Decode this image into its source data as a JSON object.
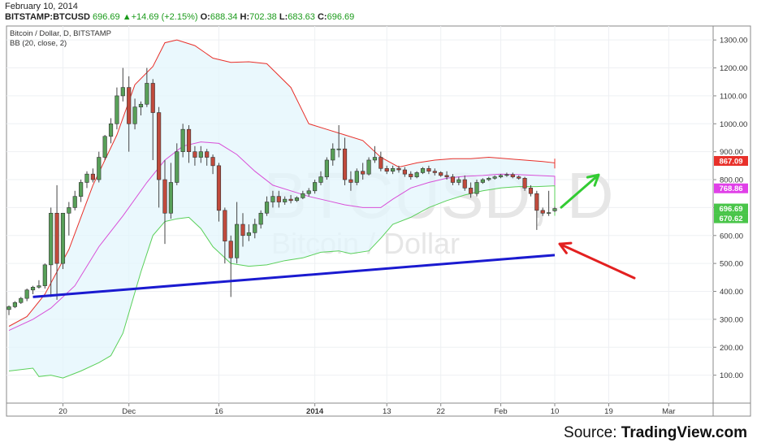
{
  "header": {
    "date": "February 10, 2014",
    "symbol": "BITSTAMP:BTCUSD",
    "last": "696.69",
    "change": "+14.69 (+2.15%)",
    "open_label": "O:",
    "open": "688.34",
    "high_label": "H:",
    "high": "702.38",
    "low_label": "L:",
    "low": "683.63",
    "close_label": "C:",
    "close": "696.69"
  },
  "legend": {
    "series": "Bitcoin / Dollar, D, BITSTAMP",
    "indicator": "BB (20, close, 2)"
  },
  "watermark": {
    "big": "BTCUSD, D",
    "small": "Bitcoin / Dollar"
  },
  "source": {
    "prefix": "Source: ",
    "name": "TradingView.com"
  },
  "price_badges": [
    {
      "label": "867.09",
      "value": 867.09,
      "color": "#e8302a"
    },
    {
      "label": "768.86",
      "value": 768.86,
      "color": "#e040e8"
    },
    {
      "label": "696.69",
      "value": 696.69,
      "color": "#49c549"
    },
    {
      "label": "670.62",
      "value": 670.62,
      "color": "#49c549"
    }
  ],
  "chart_data": {
    "type": "candlestick",
    "title": "Bitcoin / Dollar, D, BITSTAMP",
    "y_axis": {
      "ticks": [
        100,
        200,
        300,
        400,
        500,
        600,
        700,
        800,
        900,
        1000,
        1100,
        1200,
        1300
      ],
      "ylim": [
        0,
        1350
      ],
      "position": "right"
    },
    "x_axis": {
      "ticks": [
        {
          "label": "20",
          "date": "2013-11-20"
        },
        {
          "label": "Dec",
          "date": "2013-12-01"
        },
        {
          "label": "16",
          "date": "2013-12-16"
        },
        {
          "label": "2014",
          "date": "2014-01-01"
        },
        {
          "label": "13",
          "date": "2014-01-13"
        },
        {
          "label": "22",
          "date": "2014-01-22"
        },
        {
          "label": "Feb",
          "date": "2014-02-01"
        },
        {
          "label": "10",
          "date": "2014-02-10"
        },
        {
          "label": "19",
          "date": "2014-02-19"
        },
        {
          "label": "Mar",
          "date": "2014-03-01"
        }
      ],
      "range": [
        "2013-11-11",
        "2014-03-08"
      ]
    },
    "candles": [
      {
        "date": "2013-11-11",
        "o": 335,
        "h": 350,
        "l": 315,
        "c": 345
      },
      {
        "date": "2013-11-12",
        "o": 345,
        "h": 365,
        "l": 340,
        "c": 360
      },
      {
        "date": "2013-11-13",
        "o": 360,
        "h": 380,
        "l": 355,
        "c": 375
      },
      {
        "date": "2013-11-14",
        "o": 375,
        "h": 410,
        "l": 365,
        "c": 405
      },
      {
        "date": "2013-11-15",
        "o": 405,
        "h": 420,
        "l": 390,
        "c": 415
      },
      {
        "date": "2013-11-16",
        "o": 415,
        "h": 440,
        "l": 410,
        "c": 420
      },
      {
        "date": "2013-11-17",
        "o": 420,
        "h": 500,
        "l": 410,
        "c": 495
      },
      {
        "date": "2013-11-18",
        "o": 495,
        "h": 700,
        "l": 380,
        "c": 680
      },
      {
        "date": "2013-11-19",
        "o": 680,
        "h": 780,
        "l": 370,
        "c": 500
      },
      {
        "date": "2013-11-20",
        "o": 500,
        "h": 680,
        "l": 480,
        "c": 680
      },
      {
        "date": "2013-11-21",
        "o": 680,
        "h": 720,
        "l": 600,
        "c": 700
      },
      {
        "date": "2013-11-22",
        "o": 700,
        "h": 760,
        "l": 690,
        "c": 740
      },
      {
        "date": "2013-11-23",
        "o": 740,
        "h": 800,
        "l": 720,
        "c": 790
      },
      {
        "date": "2013-11-24",
        "o": 790,
        "h": 830,
        "l": 770,
        "c": 820
      },
      {
        "date": "2013-11-25",
        "o": 820,
        "h": 840,
        "l": 790,
        "c": 800
      },
      {
        "date": "2013-11-26",
        "o": 800,
        "h": 900,
        "l": 790,
        "c": 880
      },
      {
        "date": "2013-11-27",
        "o": 880,
        "h": 960,
        "l": 870,
        "c": 955
      },
      {
        "date": "2013-11-28",
        "o": 955,
        "h": 1020,
        "l": 930,
        "c": 1000
      },
      {
        "date": "2013-11-29",
        "o": 1000,
        "h": 1130,
        "l": 980,
        "c": 1100
      },
      {
        "date": "2013-11-30",
        "o": 1100,
        "h": 1200,
        "l": 1080,
        "c": 1130
      },
      {
        "date": "2013-12-01",
        "o": 1130,
        "h": 1170,
        "l": 900,
        "c": 1000
      },
      {
        "date": "2013-12-02",
        "o": 1000,
        "h": 1090,
        "l": 980,
        "c": 1060
      },
      {
        "date": "2013-12-03",
        "o": 1060,
        "h": 1080,
        "l": 1030,
        "c": 1070
      },
      {
        "date": "2013-12-04",
        "o": 1070,
        "h": 1200,
        "l": 1060,
        "c": 1145
      },
      {
        "date": "2013-12-05",
        "o": 1145,
        "h": 1160,
        "l": 870,
        "c": 1040
      },
      {
        "date": "2013-12-06",
        "o": 1040,
        "h": 1060,
        "l": 700,
        "c": 800
      },
      {
        "date": "2013-12-07",
        "o": 800,
        "h": 870,
        "l": 570,
        "c": 680
      },
      {
        "date": "2013-12-08",
        "o": 680,
        "h": 860,
        "l": 660,
        "c": 790
      },
      {
        "date": "2013-12-09",
        "o": 790,
        "h": 930,
        "l": 780,
        "c": 900
      },
      {
        "date": "2013-12-10",
        "o": 900,
        "h": 1000,
        "l": 880,
        "c": 980
      },
      {
        "date": "2013-12-11",
        "o": 980,
        "h": 995,
        "l": 860,
        "c": 900
      },
      {
        "date": "2013-12-12",
        "o": 900,
        "h": 920,
        "l": 850,
        "c": 880
      },
      {
        "date": "2013-12-13",
        "o": 880,
        "h": 920,
        "l": 860,
        "c": 900
      },
      {
        "date": "2013-12-14",
        "o": 900,
        "h": 910,
        "l": 850,
        "c": 880
      },
      {
        "date": "2013-12-15",
        "o": 880,
        "h": 890,
        "l": 820,
        "c": 850
      },
      {
        "date": "2013-12-16",
        "o": 850,
        "h": 860,
        "l": 650,
        "c": 690
      },
      {
        "date": "2013-12-17",
        "o": 690,
        "h": 700,
        "l": 500,
        "c": 580
      },
      {
        "date": "2013-12-18",
        "o": 580,
        "h": 600,
        "l": 380,
        "c": 520
      },
      {
        "date": "2013-12-19",
        "o": 520,
        "h": 720,
        "l": 500,
        "c": 640
      },
      {
        "date": "2013-12-20",
        "o": 640,
        "h": 680,
        "l": 560,
        "c": 600
      },
      {
        "date": "2013-12-21",
        "o": 600,
        "h": 640,
        "l": 580,
        "c": 610
      },
      {
        "date": "2013-12-22",
        "o": 610,
        "h": 660,
        "l": 590,
        "c": 640
      },
      {
        "date": "2013-12-23",
        "o": 640,
        "h": 690,
        "l": 625,
        "c": 680
      },
      {
        "date": "2013-12-24",
        "o": 680,
        "h": 740,
        "l": 670,
        "c": 720
      },
      {
        "date": "2013-12-25",
        "o": 720,
        "h": 760,
        "l": 700,
        "c": 740
      },
      {
        "date": "2013-12-26",
        "o": 740,
        "h": 760,
        "l": 700,
        "c": 720
      },
      {
        "date": "2013-12-27",
        "o": 720,
        "h": 740,
        "l": 710,
        "c": 730
      },
      {
        "date": "2013-12-28",
        "o": 730,
        "h": 745,
        "l": 715,
        "c": 725
      },
      {
        "date": "2013-12-29",
        "o": 725,
        "h": 740,
        "l": 720,
        "c": 735
      },
      {
        "date": "2013-12-30",
        "o": 735,
        "h": 760,
        "l": 730,
        "c": 750
      },
      {
        "date": "2013-12-31",
        "o": 750,
        "h": 770,
        "l": 740,
        "c": 760
      },
      {
        "date": "2014-01-01",
        "o": 760,
        "h": 800,
        "l": 750,
        "c": 790
      },
      {
        "date": "2014-01-02",
        "o": 790,
        "h": 830,
        "l": 780,
        "c": 810
      },
      {
        "date": "2014-01-03",
        "o": 810,
        "h": 880,
        "l": 800,
        "c": 870
      },
      {
        "date": "2014-01-04",
        "o": 870,
        "h": 930,
        "l": 850,
        "c": 910
      },
      {
        "date": "2014-01-05",
        "o": 910,
        "h": 995,
        "l": 880,
        "c": 910
      },
      {
        "date": "2014-01-06",
        "o": 910,
        "h": 950,
        "l": 780,
        "c": 800
      },
      {
        "date": "2014-01-07",
        "o": 800,
        "h": 830,
        "l": 760,
        "c": 790
      },
      {
        "date": "2014-01-08",
        "o": 790,
        "h": 840,
        "l": 780,
        "c": 830
      },
      {
        "date": "2014-01-09",
        "o": 830,
        "h": 860,
        "l": 800,
        "c": 820
      },
      {
        "date": "2014-01-10",
        "o": 820,
        "h": 880,
        "l": 815,
        "c": 870
      },
      {
        "date": "2014-01-11",
        "o": 870,
        "h": 920,
        "l": 860,
        "c": 880
      },
      {
        "date": "2014-01-12",
        "o": 880,
        "h": 900,
        "l": 830,
        "c": 840
      },
      {
        "date": "2014-01-13",
        "o": 840,
        "h": 850,
        "l": 820,
        "c": 830
      },
      {
        "date": "2014-01-14",
        "o": 830,
        "h": 850,
        "l": 820,
        "c": 840
      },
      {
        "date": "2014-01-15",
        "o": 840,
        "h": 850,
        "l": 825,
        "c": 835
      },
      {
        "date": "2014-01-16",
        "o": 835,
        "h": 845,
        "l": 810,
        "c": 820
      },
      {
        "date": "2014-01-17",
        "o": 820,
        "h": 830,
        "l": 800,
        "c": 810
      },
      {
        "date": "2014-01-18",
        "o": 810,
        "h": 830,
        "l": 805,
        "c": 825
      },
      {
        "date": "2014-01-19",
        "o": 825,
        "h": 845,
        "l": 820,
        "c": 840
      },
      {
        "date": "2014-01-20",
        "o": 840,
        "h": 850,
        "l": 820,
        "c": 830
      },
      {
        "date": "2014-01-21",
        "o": 830,
        "h": 840,
        "l": 815,
        "c": 825
      },
      {
        "date": "2014-01-22",
        "o": 825,
        "h": 830,
        "l": 810,
        "c": 815
      },
      {
        "date": "2014-01-23",
        "o": 815,
        "h": 830,
        "l": 800,
        "c": 810
      },
      {
        "date": "2014-01-24",
        "o": 810,
        "h": 820,
        "l": 780,
        "c": 790
      },
      {
        "date": "2014-01-25",
        "o": 790,
        "h": 810,
        "l": 780,
        "c": 800
      },
      {
        "date": "2014-01-26",
        "o": 800,
        "h": 815,
        "l": 760,
        "c": 770
      },
      {
        "date": "2014-01-27",
        "o": 770,
        "h": 790,
        "l": 735,
        "c": 750
      },
      {
        "date": "2014-01-28",
        "o": 750,
        "h": 800,
        "l": 740,
        "c": 790
      },
      {
        "date": "2014-01-29",
        "o": 790,
        "h": 805,
        "l": 785,
        "c": 800
      },
      {
        "date": "2014-01-30",
        "o": 800,
        "h": 810,
        "l": 795,
        "c": 805
      },
      {
        "date": "2014-01-31",
        "o": 805,
        "h": 815,
        "l": 800,
        "c": 810
      },
      {
        "date": "2014-02-01",
        "o": 810,
        "h": 820,
        "l": 805,
        "c": 815
      },
      {
        "date": "2014-02-02",
        "o": 815,
        "h": 825,
        "l": 810,
        "c": 818
      },
      {
        "date": "2014-02-03",
        "o": 818,
        "h": 825,
        "l": 805,
        "c": 810
      },
      {
        "date": "2014-02-04",
        "o": 810,
        "h": 815,
        "l": 800,
        "c": 805
      },
      {
        "date": "2014-02-05",
        "o": 805,
        "h": 810,
        "l": 760,
        "c": 770
      },
      {
        "date": "2014-02-06",
        "o": 770,
        "h": 780,
        "l": 740,
        "c": 750
      },
      {
        "date": "2014-02-07",
        "o": 750,
        "h": 760,
        "l": 620,
        "c": 690
      },
      {
        "date": "2014-02-08",
        "o": 690,
        "h": 700,
        "l": 670,
        "c": 680
      },
      {
        "date": "2014-02-09",
        "o": 680,
        "h": 760,
        "l": 670,
        "c": 682
      },
      {
        "date": "2014-02-10",
        "o": 688.34,
        "h": 702.38,
        "l": 683.63,
        "c": 696.69
      }
    ],
    "bollinger": {
      "upper": [
        [
          0,
          275
        ],
        [
          3,
          310
        ],
        [
          6,
          390
        ],
        [
          10,
          550
        ],
        [
          14,
          780
        ],
        [
          18,
          960
        ],
        [
          21,
          1140
        ],
        [
          24,
          1205
        ],
        [
          26,
          1290
        ],
        [
          28,
          1300
        ],
        [
          31,
          1280
        ],
        [
          34,
          1235
        ],
        [
          37,
          1220
        ],
        [
          40,
          1222
        ],
        [
          43,
          1215
        ],
        [
          47,
          1130
        ],
        [
          50,
          1000
        ],
        [
          53,
          980
        ],
        [
          56,
          960
        ],
        [
          59,
          940
        ],
        [
          62,
          880
        ],
        [
          65,
          845
        ],
        [
          68,
          860
        ],
        [
          71,
          870
        ],
        [
          74,
          875
        ],
        [
          77,
          875
        ],
        [
          80,
          880
        ],
        [
          83,
          875
        ],
        [
          86,
          870
        ],
        [
          89,
          865
        ],
        [
          92,
          860
        ],
        [
          95,
          855
        ],
        [
          97,
          845
        ],
        [
          99,
          840
        ],
        [
          101,
          845
        ],
        [
          103,
          855
        ],
        [
          105,
          875
        ],
        [
          107,
          867
        ]
      ],
      "middle": [
        [
          0,
          260
        ],
        [
          4,
          300
        ],
        [
          7,
          340
        ],
        [
          11,
          420
        ],
        [
          15,
          560
        ],
        [
          19,
          670
        ],
        [
          23,
          790
        ],
        [
          26,
          870
        ],
        [
          29,
          920
        ],
        [
          32,
          935
        ],
        [
          35,
          930
        ],
        [
          38,
          890
        ],
        [
          41,
          830
        ],
        [
          44,
          780
        ],
        [
          47,
          760
        ],
        [
          50,
          740
        ],
        [
          53,
          725
        ],
        [
          56,
          710
        ],
        [
          59,
          700
        ],
        [
          62,
          700
        ],
        [
          64,
          730
        ],
        [
          67,
          770
        ],
        [
          70,
          790
        ],
        [
          73,
          805
        ],
        [
          76,
          812
        ],
        [
          79,
          815
        ],
        [
          82,
          820
        ],
        [
          85,
          818
        ],
        [
          88,
          815
        ],
        [
          91,
          812
        ],
        [
          94,
          808
        ],
        [
          97,
          800
        ],
        [
          100,
          790
        ],
        [
          103,
          780
        ],
        [
          107,
          768.86
        ]
      ],
      "lower": [
        [
          0,
          115
        ],
        [
          4,
          125
        ],
        [
          5,
          95
        ],
        [
          7,
          100
        ],
        [
          9,
          90
        ],
        [
          12,
          115
        ],
        [
          15,
          145
        ],
        [
          17,
          170
        ],
        [
          19,
          250
        ],
        [
          22,
          470
        ],
        [
          24,
          600
        ],
        [
          26,
          650
        ],
        [
          28,
          660
        ],
        [
          30,
          665
        ],
        [
          32,
          625
        ],
        [
          34,
          560
        ],
        [
          37,
          500
        ],
        [
          40,
          490
        ],
        [
          43,
          495
        ],
        [
          46,
          510
        ],
        [
          49,
          520
        ],
        [
          52,
          540
        ],
        [
          55,
          545
        ],
        [
          57,
          535
        ],
        [
          60,
          545
        ],
        [
          62,
          590
        ],
        [
          64,
          640
        ],
        [
          67,
          665
        ],
        [
          70,
          700
        ],
        [
          73,
          725
        ],
        [
          76,
          745
        ],
        [
          79,
          760
        ],
        [
          82,
          770
        ],
        [
          85,
          775
        ],
        [
          88,
          775
        ],
        [
          91,
          778
        ],
        [
          94,
          770
        ],
        [
          97,
          760
        ],
        [
          100,
          730
        ],
        [
          102,
          710
        ],
        [
          105,
          690
        ],
        [
          107,
          670.62
        ]
      ]
    },
    "annotations": [
      {
        "type": "trendline",
        "color": "#1a1ad0",
        "from": {
          "date": "2013-11-15",
          "price": 380
        },
        "to": {
          "date": "2014-02-10",
          "price": 530
        }
      },
      {
        "type": "arrow",
        "color": "#e32020",
        "direction": "up-left",
        "target": {
          "date": "2014-02-10",
          "price": 570
        }
      },
      {
        "type": "arrow",
        "color": "#33cc33",
        "direction": "up-right",
        "target": {
          "date": "2014-02-10",
          "price": 695
        }
      }
    ]
  }
}
